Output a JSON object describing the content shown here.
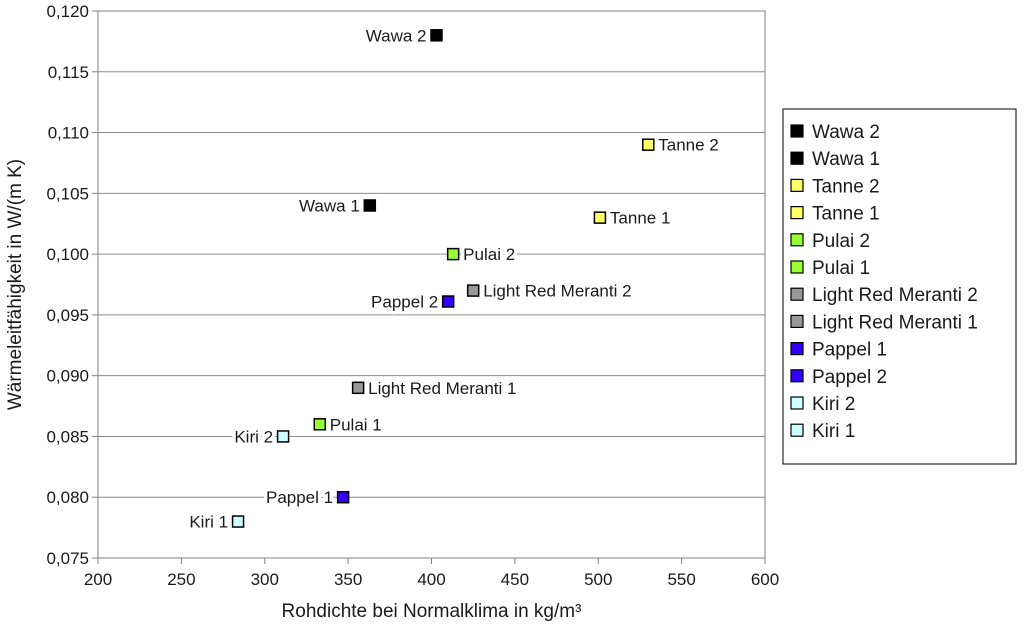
{
  "chart_data": {
    "type": "scatter",
    "title": "",
    "xlabel": "Rohdichte bei Normalklima in kg/m³",
    "ylabel": "Wärmeleitfähigkeit in W/(m K)",
    "xlim": [
      200,
      600
    ],
    "ylim": [
      0.075,
      0.12
    ],
    "x_ticks": [
      200,
      250,
      300,
      350,
      400,
      450,
      500,
      550,
      600
    ],
    "x_tick_labels": [
      "200",
      "250",
      "300",
      "350",
      "400",
      "450",
      "500",
      "550",
      "600"
    ],
    "y_ticks": [
      0.075,
      0.08,
      0.085,
      0.09,
      0.095,
      0.1,
      0.105,
      0.11,
      0.115,
      0.12
    ],
    "y_tick_labels": [
      "0,075",
      "0,080",
      "0,085",
      "0,090",
      "0,095",
      "0,100",
      "0,105",
      "0,110",
      "0,115",
      "0,120"
    ],
    "grid": "horizontal",
    "legend_position": "right",
    "series": [
      {
        "name": "Wawa 2",
        "x": 403,
        "y": 0.118,
        "color": "#000000",
        "label_side": "left"
      },
      {
        "name": "Wawa 1",
        "x": 363,
        "y": 0.104,
        "color": "#000000",
        "label_side": "left"
      },
      {
        "name": "Tanne 2",
        "x": 530,
        "y": 0.109,
        "color": "#ffff66",
        "label_side": "right"
      },
      {
        "name": "Tanne 1",
        "x": 501,
        "y": 0.103,
        "color": "#ffff66",
        "label_side": "right"
      },
      {
        "name": "Pulai 2",
        "x": 413,
        "y": 0.1,
        "color": "#99ff33",
        "label_side": "right"
      },
      {
        "name": "Pulai 1",
        "x": 333,
        "y": 0.086,
        "color": "#99ff33",
        "label_side": "right"
      },
      {
        "name": "Light Red Meranti 2",
        "x": 425,
        "y": 0.097,
        "color": "#999999",
        "label_side": "right"
      },
      {
        "name": "Light Red Meranti 1",
        "x": 356,
        "y": 0.089,
        "color": "#999999",
        "label_side": "right"
      },
      {
        "name": "Pappel 1",
        "x": 347,
        "y": 0.08,
        "color": "#3300ff",
        "label_side": "left"
      },
      {
        "name": "Pappel 2",
        "x": 410,
        "y": 0.0961,
        "color": "#3300ff",
        "label_side": "left"
      },
      {
        "name": "Kiri 2",
        "x": 311,
        "y": 0.085,
        "color": "#ccffff",
        "label_side": "left"
      },
      {
        "name": "Kiri 1",
        "x": 284,
        "y": 0.078,
        "color": "#ccffff",
        "label_side": "left"
      }
    ]
  }
}
